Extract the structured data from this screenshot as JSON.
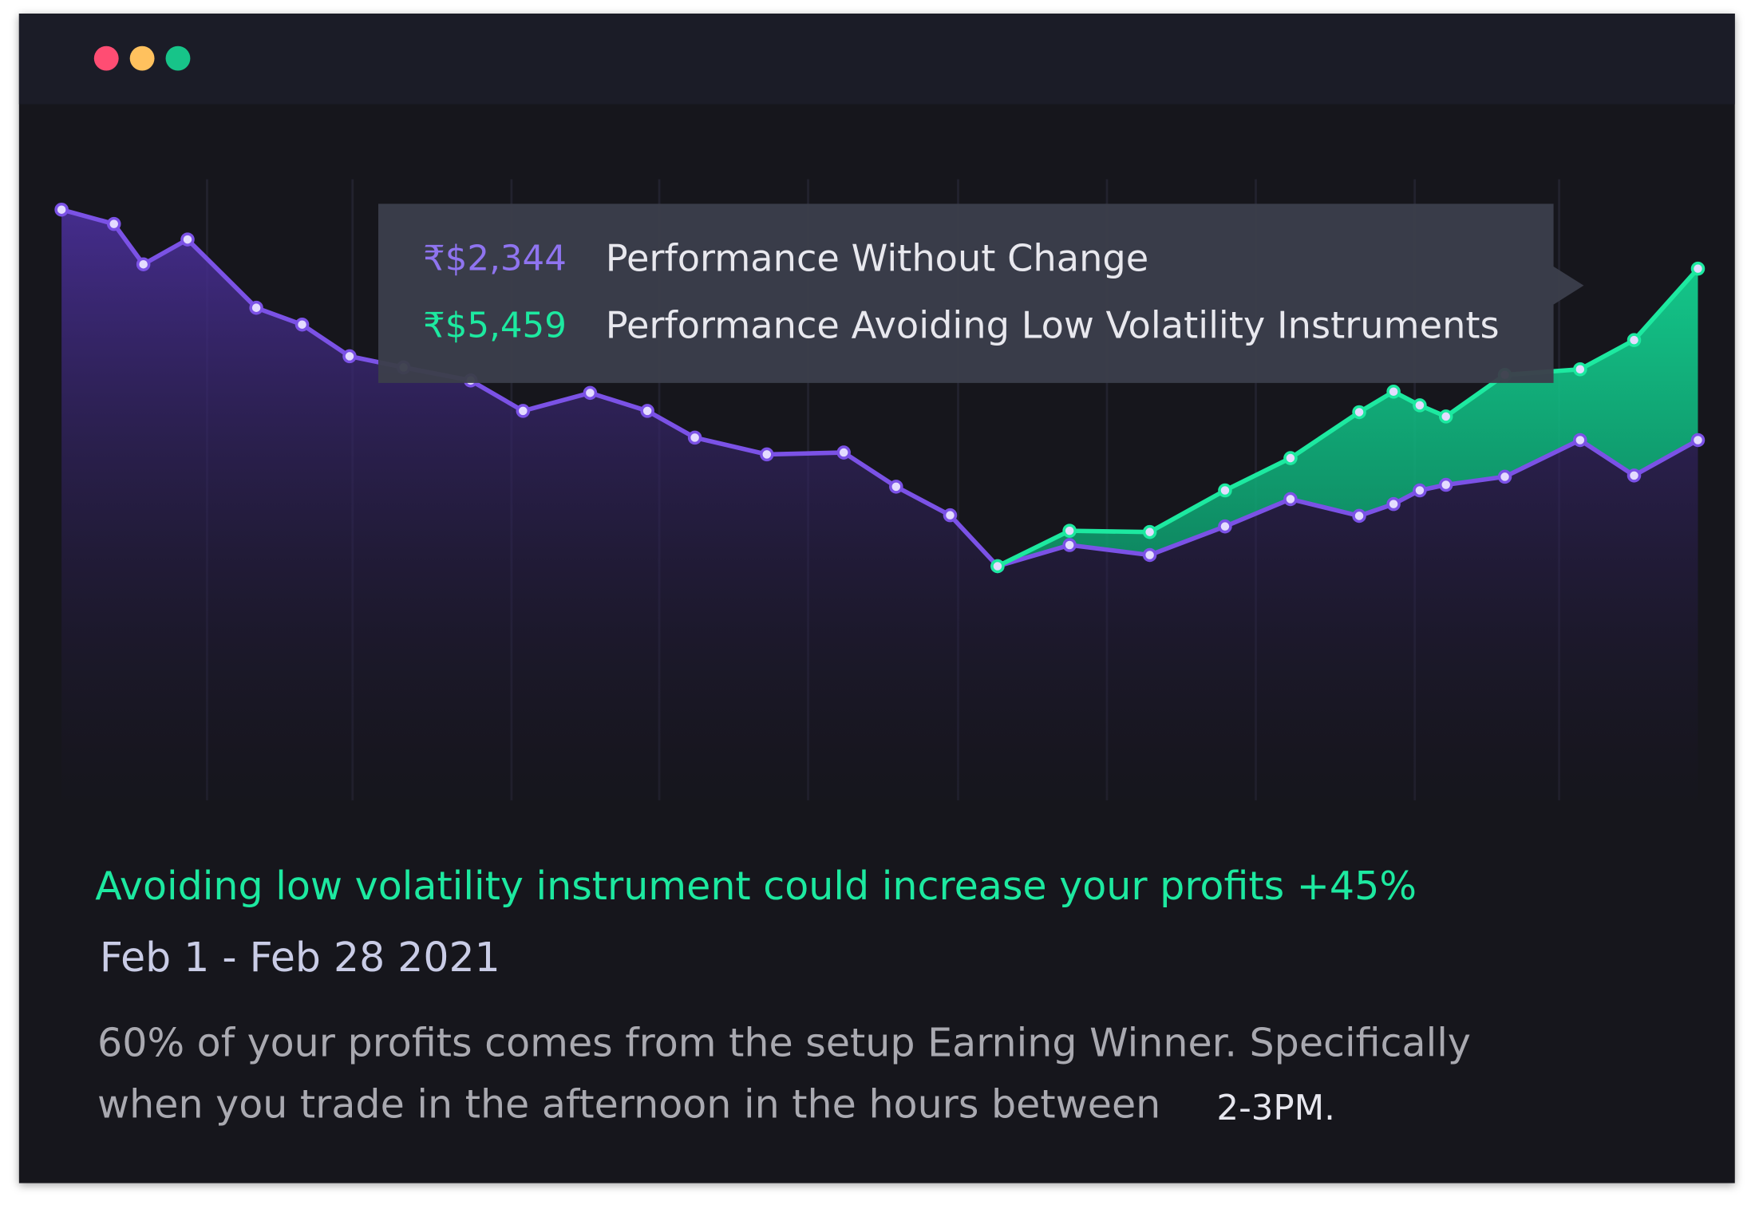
{
  "chart_data": {
    "type": "line",
    "x": [
      0,
      3.2,
      5.0,
      7.7,
      11.9,
      14.7,
      17.6,
      20.9,
      25.0,
      28.2,
      32.3,
      35.8,
      38.7,
      43.1,
      47.8,
      51.0,
      54.3,
      57.2,
      61.6,
      66.5,
      71.1,
      75.1,
      79.3,
      81.4,
      83.0,
      84.6,
      88.2,
      92.8,
      96.1,
      100
    ],
    "xlim": [
      0,
      100
    ],
    "ylim": [
      0,
      100
    ],
    "grid": true,
    "series": [
      {
        "name": "Performance Without Change",
        "color": "#7b52e6",
        "values": [
          95.1,
          92.8,
          86.3,
          90.3,
          79.3,
          76.6,
          71.5,
          69.7,
          67.6,
          62.7,
          65.6,
          62.7,
          58.4,
          55.7,
          56.0,
          50.5,
          45.9,
          37.7,
          41.1,
          39.5,
          44.1,
          48.5,
          45.8,
          47.7,
          49.9,
          50.8,
          52.1,
          58.0,
          52.3,
          58.0
        ]
      },
      {
        "name": "Performance Avoiding Low Volatility Instruments",
        "color": "#1de9a0",
        "values": [
          null,
          null,
          null,
          null,
          null,
          null,
          null,
          null,
          null,
          null,
          null,
          null,
          null,
          null,
          null,
          null,
          null,
          37.7,
          43.4,
          43.2,
          49.9,
          55.1,
          62.5,
          65.8,
          63.6,
          61.8,
          68.5,
          69.4,
          74.1,
          85.6
        ]
      }
    ],
    "tooltip": [
      {
        "value": "₹$2,344",
        "label": "Performance Without Change"
      },
      {
        "value": "₹$5,459",
        "label": "Performance Avoiding Low Volatility Instruments"
      }
    ]
  },
  "headline": "Avoiding low volatility instrument could increase your profits +45%",
  "date_range": "Feb 1 - Feb 28 2021",
  "body_lines": [
    "60% of your profits comes from the setup Earning Winner. Specifically",
    "when you trade in the afternoon in the hours between"
  ],
  "highlight": "2-3PM."
}
